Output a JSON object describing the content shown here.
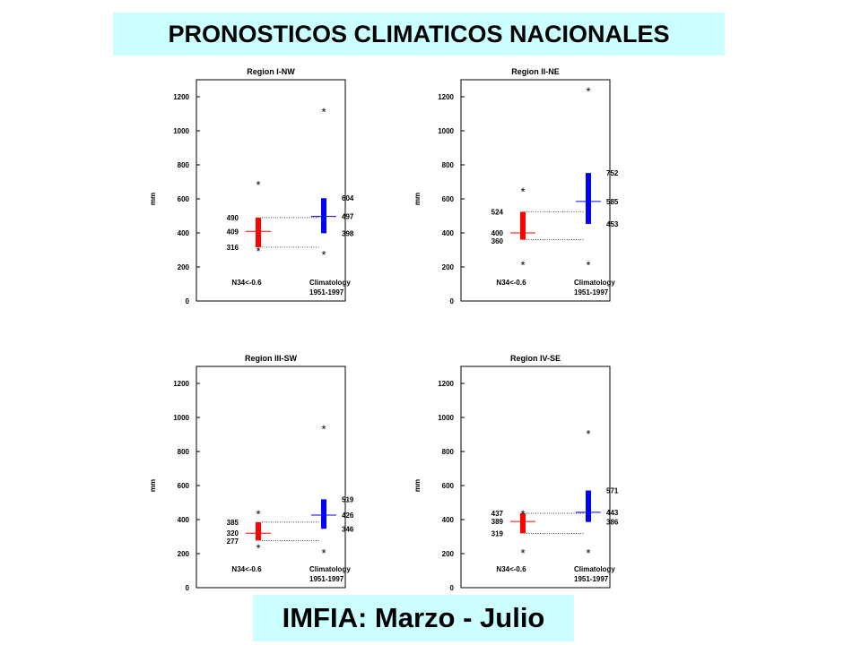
{
  "header": {
    "title": "PRONOSTICOS CLIMATICOS NACIONALES"
  },
  "footer": {
    "label": "IMFIA: Marzo - Julio"
  },
  "chart_data": [
    {
      "type": "box",
      "title": "Region I-NW",
      "ylabel": "mm",
      "ylim": [
        0,
        1300
      ],
      "yticks": [
        0,
        200,
        400,
        600,
        800,
        1000,
        1200
      ],
      "series": [
        {
          "name": "N34<-0.6",
          "sublabel": "",
          "color": "#ff0000",
          "q1": 316,
          "median": 409,
          "q3": 490,
          "outliers": [
            700,
            310
          ],
          "labels": [
            "490",
            "409",
            "316"
          ]
        },
        {
          "name": "Climatology",
          "sublabel": "1951-1997",
          "color": "#0000ff",
          "q1": 398,
          "median": 497,
          "q3": 604,
          "outliers": [
            1130,
            290
          ],
          "labels": [
            "604",
            "497",
            "398"
          ]
        }
      ]
    },
    {
      "type": "box",
      "title": "Region II-NE",
      "ylabel": "mm",
      "ylim": [
        0,
        1300
      ],
      "yticks": [
        0,
        200,
        400,
        600,
        800,
        1000,
        1200
      ],
      "series": [
        {
          "name": "N34<-0.6",
          "sublabel": "",
          "color": "#ff0000",
          "q1": 360,
          "median": 400,
          "q3": 524,
          "outliers": [
            660,
            230
          ],
          "labels": [
            "524",
            "400",
            "360"
          ]
        },
        {
          "name": "Climatology",
          "sublabel": "1951-1997",
          "color": "#0000ff",
          "q1": 453,
          "median": 585,
          "q3": 752,
          "outliers": [
            1250,
            230
          ],
          "labels": [
            "752",
            "585",
            "453"
          ]
        }
      ]
    },
    {
      "type": "box",
      "title": "Region III-SW",
      "ylabel": "mm",
      "ylim": [
        0,
        1300
      ],
      "yticks": [
        0,
        200,
        400,
        600,
        800,
        1000,
        1200
      ],
      "series": [
        {
          "name": "N34<-0.6",
          "sublabel": "",
          "color": "#ff0000",
          "q1": 277,
          "median": 320,
          "q3": 385,
          "outliers": [
            450,
            250
          ],
          "labels": [
            "385",
            "320",
            "277"
          ]
        },
        {
          "name": "Climatology",
          "sublabel": "1951-1997",
          "color": "#0000ff",
          "q1": 346,
          "median": 426,
          "q3": 519,
          "outliers": [
            950,
            220
          ],
          "labels": [
            "519",
            "426",
            "346"
          ]
        }
      ]
    },
    {
      "type": "box",
      "title": "Region IV-SE",
      "ylabel": "mm",
      "ylim": [
        0,
        1300
      ],
      "yticks": [
        0,
        200,
        400,
        600,
        800,
        1000,
        1200
      ],
      "series": [
        {
          "name": "N34<-0.6",
          "sublabel": "",
          "color": "#ff0000",
          "q1": 319,
          "median": 389,
          "q3": 437,
          "outliers": [
            450,
            220
          ],
          "labels": [
            "437",
            "389",
            "319"
          ]
        },
        {
          "name": "Climatology",
          "sublabel": "1951-1997",
          "color": "#0000ff",
          "q1": 386,
          "median": 443,
          "q3": 571,
          "outliers": [
            920,
            220
          ],
          "labels": [
            "571",
            "443",
            "386"
          ]
        }
      ]
    }
  ]
}
